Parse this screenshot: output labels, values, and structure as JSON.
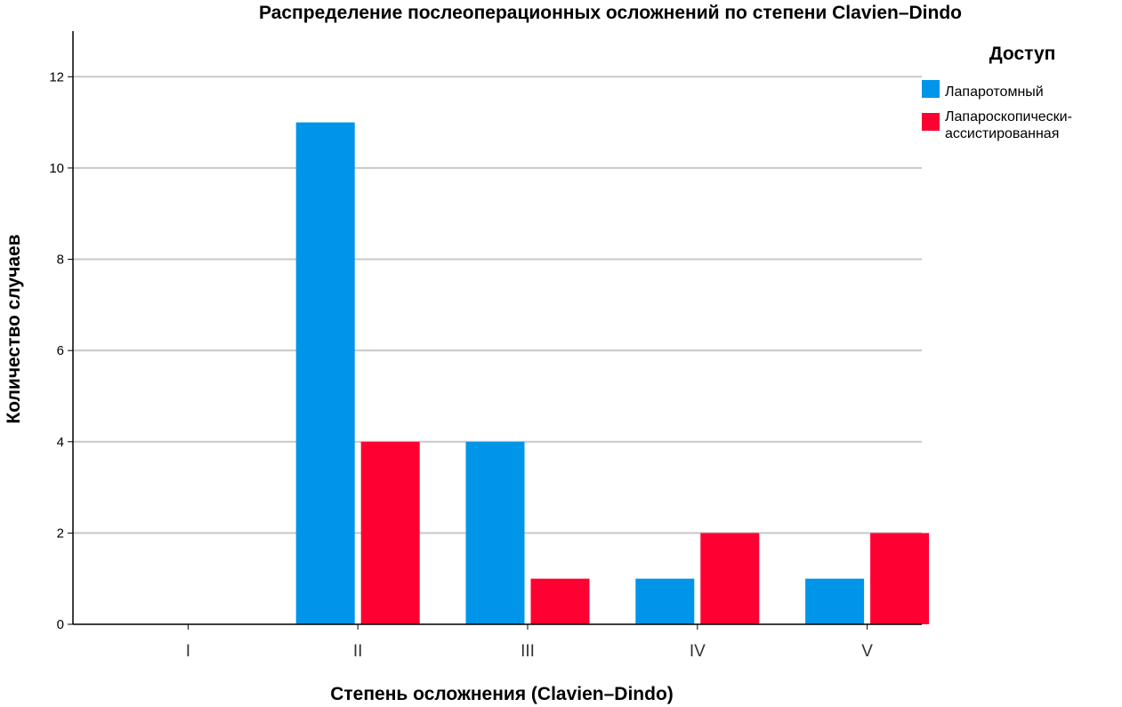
{
  "chart_data": {
    "type": "bar",
    "title": "Распределение послеоперационных осложнений по степени Clavien–Dindo",
    "xlabel": "Степень осложнения (Clavien–Dindo)",
    "ylabel": "Количество случаев",
    "categories": [
      "I",
      "II",
      "III",
      "IV",
      "V"
    ],
    "ylim": [
      0,
      13
    ],
    "yticks": [
      0,
      2,
      4,
      6,
      8,
      10,
      12
    ],
    "grid": "horizontal",
    "legend": {
      "title": "Доступ",
      "placement": "right",
      "entries": [
        "Лапаротомный",
        "Лапароскопически-ассистированная"
      ]
    },
    "series": [
      {
        "name": "Лапаротомный",
        "color": "#0095E8",
        "values": [
          0,
          11,
          4,
          1,
          1
        ]
      },
      {
        "name": "Лапароскопически-ассистированная",
        "color": "#FF0033",
        "values": [
          0,
          4,
          1,
          2,
          2
        ]
      }
    ]
  }
}
